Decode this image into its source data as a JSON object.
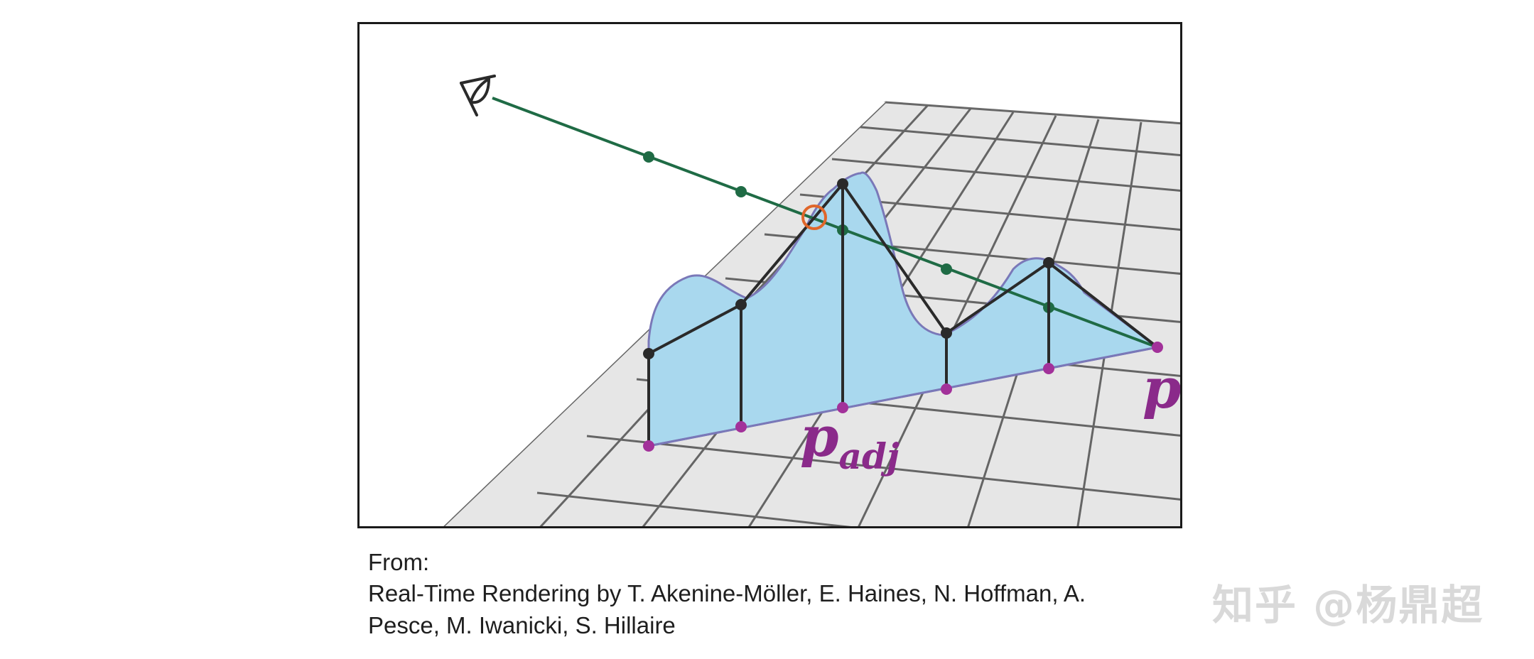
{
  "figure": {
    "labels": {
      "p": "p",
      "p_adj_main": "p",
      "p_adj_sub": "adj"
    },
    "colors": {
      "ray": "#1f6b45",
      "surface_fill": "#a9d8ee",
      "surface_outline": "#7a78b8",
      "magenta_points": "#a2319a",
      "black_points": "#2a2a2a",
      "intersection": "#e0662a",
      "grid_tile": "#e6e6e6",
      "grid_line": "#3a3a3a",
      "label": "#8a2a8a"
    },
    "icons": [
      "eye-icon"
    ]
  },
  "caption": {
    "line1": "From:",
    "line2": "Real-Time Rendering by T. Akenine-Möller, E. Haines, N. Hoffman, A.",
    "line3": "Pesce, M. Iwanicki, S. Hillaire"
  },
  "watermark": "知乎 @杨鼎超"
}
